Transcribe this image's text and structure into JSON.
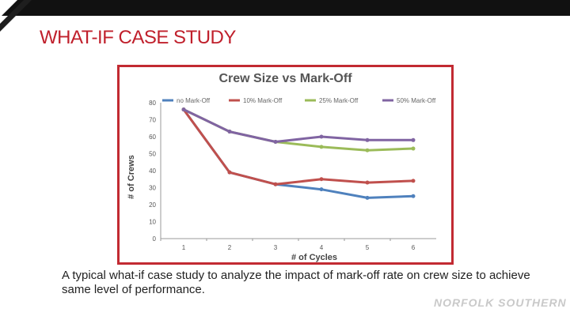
{
  "slide": {
    "title": "WHAT-IF CASE STUDY",
    "caption": "A typical what-if case study to analyze the impact of mark-off rate on crew size to achieve same level of performance.",
    "brand": "NORFOLK SOUTHERN"
  },
  "colors": {
    "title": "#c0202c",
    "frame": "#c22a32",
    "axis": "#9a9a9a"
  },
  "chart_data": {
    "type": "line",
    "title": "Crew Size vs Mark-Off",
    "xlabel": "# of Cycles",
    "ylabel": "# of Crews",
    "x": [
      1,
      2,
      3,
      4,
      5,
      6
    ],
    "ylim": [
      0,
      80
    ],
    "yticks": [
      0,
      10,
      20,
      30,
      40,
      50,
      60,
      70,
      80
    ],
    "grid": false,
    "legend": "top",
    "series": [
      {
        "name": "no Mark-Off",
        "color": "#4f81bd",
        "values": [
          76,
          39,
          32,
          29,
          24,
          25
        ]
      },
      {
        "name": "10% Mark-Off",
        "color": "#c0504d",
        "values": [
          76,
          39,
          32,
          35,
          33,
          34
        ]
      },
      {
        "name": "25% Mark-Off",
        "color": "#9bbb59",
        "values": [
          76,
          63,
          57,
          54,
          52,
          53
        ]
      },
      {
        "name": "50% Mark-Off",
        "color": "#8064a2",
        "values": [
          76,
          63,
          57,
          60,
          58,
          58
        ]
      }
    ]
  }
}
